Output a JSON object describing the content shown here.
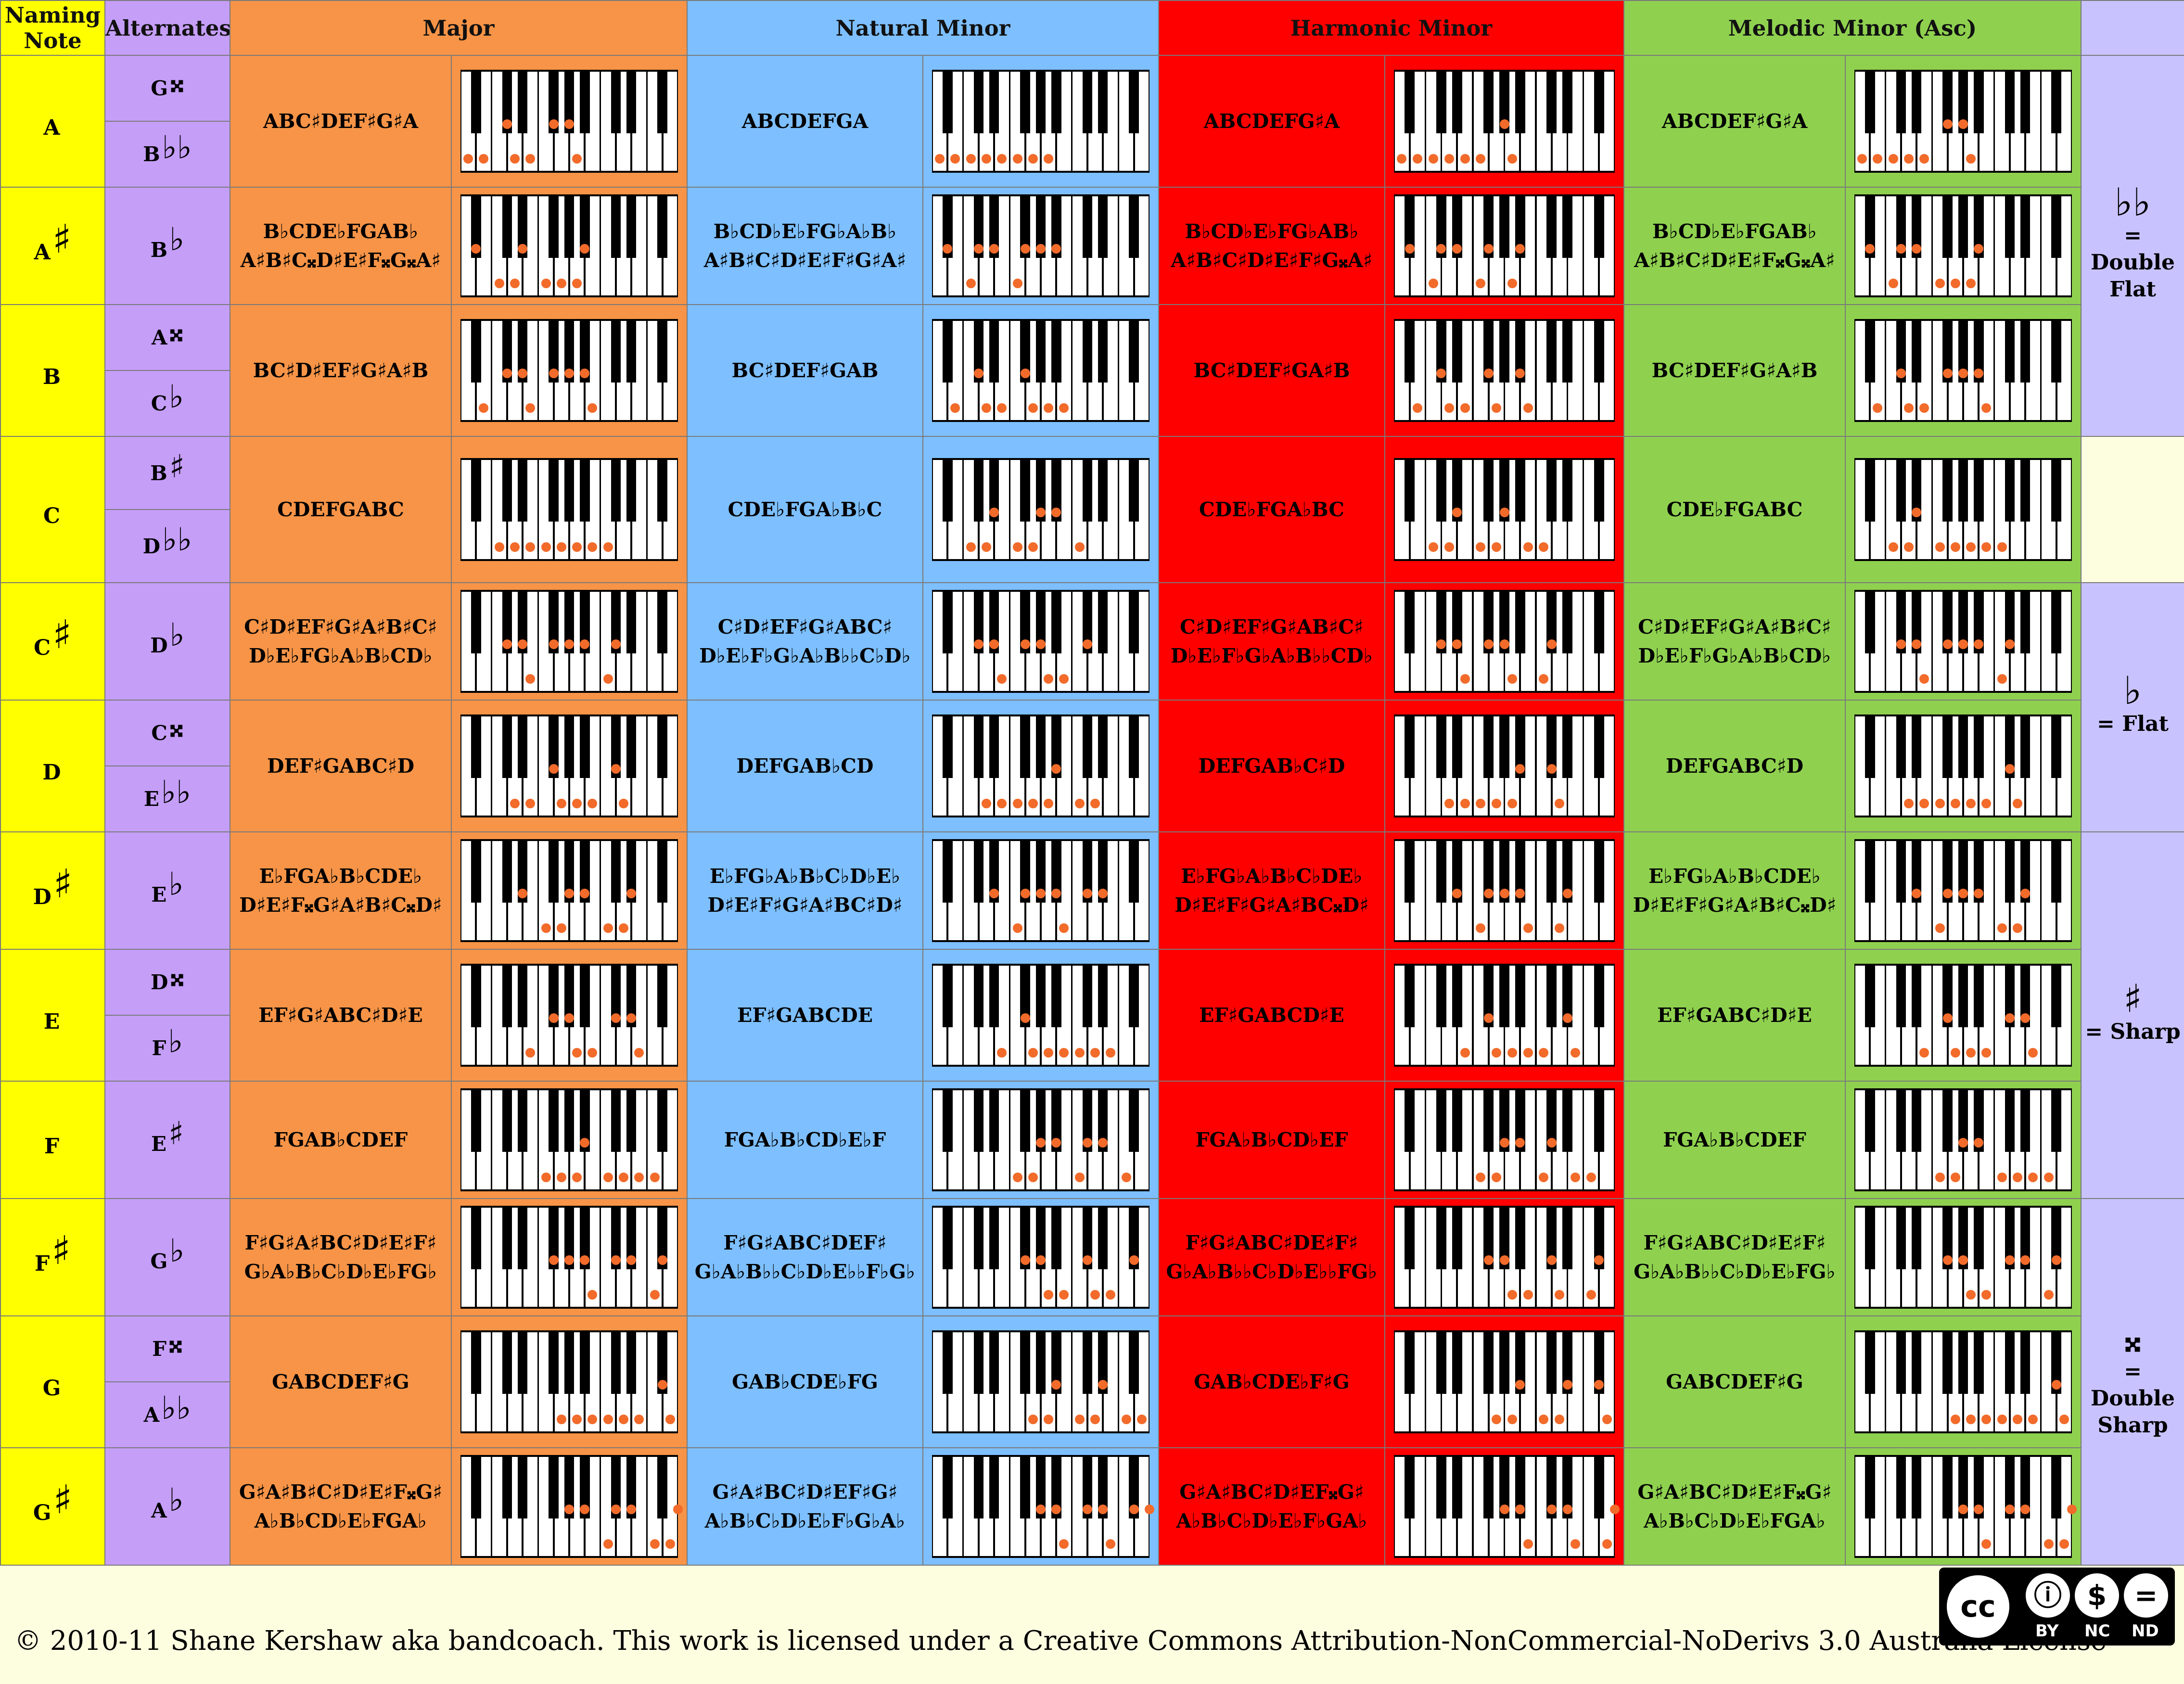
{
  "headers": {
    "naming": "Naming Note",
    "alternates": "Alternates",
    "major": "Major",
    "natural": "Natural Minor",
    "harmonic": "Harmonic Minor",
    "melodic": "Melodic Minor (Asc)"
  },
  "rows": [
    {
      "name": "A",
      "name_acc": "",
      "alts": [
        {
          "l": "G",
          "a": "𝄪"
        },
        {
          "l": "B",
          "a": "♭♭"
        }
      ],
      "major": [
        "ABC♯DEF♯G♯A"
      ],
      "natural": [
        "ABCDEFGA"
      ],
      "harmonic": [
        "ABCDEFG♯A"
      ],
      "melodic": [
        "ABCDEF♯G♯A"
      ]
    },
    {
      "name": "A",
      "name_acc": "♯",
      "alts": [
        {
          "l": "B",
          "a": "♭"
        }
      ],
      "major": [
        "B♭CDE♭FGAB♭",
        "A♯B♯C𝄪D♯E♯F𝄪G𝄪A♯"
      ],
      "natural": [
        "B♭CD♭E♭FG♭A♭B♭",
        "A♯B♯C♯D♯E♯F♯G♯A♯"
      ],
      "harmonic": [
        "B♭CD♭E♭FG♭AB♭",
        "A♯B♯C♯D♯E♯F♯G𝄪A♯"
      ],
      "melodic": [
        "B♭CD♭E♭FGAB♭",
        "A♯B♯C♯D♯E♯F𝄪G𝄪A♯"
      ]
    },
    {
      "name": "B",
      "name_acc": "",
      "alts": [
        {
          "l": "A",
          "a": "𝄪"
        },
        {
          "l": "C",
          "a": "♭"
        }
      ],
      "major": [
        "BC♯D♯EF♯G♯A♯B"
      ],
      "natural": [
        "BC♯DEF♯GAB"
      ],
      "harmonic": [
        "BC♯DEF♯GA♯B"
      ],
      "melodic": [
        "BC♯DEF♯G♯A♯B"
      ]
    },
    {
      "name": "C",
      "name_acc": "",
      "alts": [
        {
          "l": "B",
          "a": "♯"
        },
        {
          "l": "D",
          "a": "♭♭"
        }
      ],
      "major": [
        "CDEFGABC"
      ],
      "natural": [
        "CDE♭FGA♭B♭C"
      ],
      "harmonic": [
        "CDE♭FGA♭BC"
      ],
      "melodic": [
        "CDE♭FGABC"
      ]
    },
    {
      "name": "C",
      "name_acc": "♯",
      "alts": [
        {
          "l": "D",
          "a": "♭"
        }
      ],
      "major": [
        "C♯D♯EF♯G♯A♯B♯C♯",
        "D♭E♭FG♭A♭B♭CD♭"
      ],
      "natural": [
        "C♯D♯EF♯G♯ABC♯",
        "D♭E♭F♭G♭A♭B♭♭C♭D♭"
      ],
      "harmonic": [
        "C♯D♯EF♯G♯AB♯C♯",
        "D♭E♭F♭G♭A♭B♭♭CD♭"
      ],
      "melodic": [
        "C♯D♯EF♯G♯A♯B♯C♯",
        "D♭E♭F♭G♭A♭B♭CD♭"
      ]
    },
    {
      "name": "D",
      "name_acc": "",
      "alts": [
        {
          "l": "C",
          "a": "𝄪"
        },
        {
          "l": "E",
          "a": "♭♭"
        }
      ],
      "major": [
        "DEF♯GABC♯D"
      ],
      "natural": [
        "DEFGAB♭CD"
      ],
      "harmonic": [
        "DEFGAB♭C♯D"
      ],
      "melodic": [
        "DEFGABC♯D"
      ]
    },
    {
      "name": "D",
      "name_acc": "♯",
      "alts": [
        {
          "l": "E",
          "a": "♭"
        }
      ],
      "major": [
        "E♭FGA♭B♭CDE♭",
        "D♯E♯F𝄪G♯A♯B♯C𝄪D♯"
      ],
      "natural": [
        "E♭FG♭A♭B♭C♭D♭E♭",
        "D♯E♯F♯G♯A♯BC♯D♯"
      ],
      "harmonic": [
        "E♭FG♭A♭B♭C♭DE♭",
        "D♯E♯F♯G♯A♯BC𝄪D♯"
      ],
      "melodic": [
        "E♭FG♭A♭B♭CDE♭",
        "D♯E♯F♯G♯A♯B♯C𝄪D♯"
      ]
    },
    {
      "name": "E",
      "name_acc": "",
      "alts": [
        {
          "l": "D",
          "a": "𝄪"
        },
        {
          "l": "F",
          "a": "♭"
        }
      ],
      "major": [
        "EF♯G♯ABC♯D♯E"
      ],
      "natural": [
        "EF♯GABCDE"
      ],
      "harmonic": [
        "EF♯GABCD♯E"
      ],
      "melodic": [
        "EF♯GABC♯D♯E"
      ]
    },
    {
      "name": "F",
      "name_acc": "",
      "alts": [
        {
          "l": "E",
          "a": "♯"
        }
      ],
      "major": [
        "FGAB♭CDEF"
      ],
      "natural": [
        "FGA♭B♭CD♭E♭F"
      ],
      "harmonic": [
        "FGA♭B♭CD♭EF"
      ],
      "melodic": [
        "FGA♭B♭CDEF"
      ]
    },
    {
      "name": "F",
      "name_acc": "♯",
      "alts": [
        {
          "l": "G",
          "a": "♭"
        }
      ],
      "major": [
        "F♯G♯A♯BC♯D♯E♯F♯",
        "G♭A♭B♭C♭D♭E♭FG♭"
      ],
      "natural": [
        "F♯G♯ABC♯DEF♯",
        "G♭A♭B♭♭C♭D♭E♭♭F♭G♭"
      ],
      "harmonic": [
        "F♯G♯ABC♯DE♯F♯",
        "G♭A♭B♭♭C♭D♭E♭♭FG♭"
      ],
      "melodic": [
        "F♯G♯ABC♯D♯E♯F♯",
        "G♭A♭B♭♭C♭D♭E♭FG♭"
      ]
    },
    {
      "name": "G",
      "name_acc": "",
      "alts": [
        {
          "l": "F",
          "a": "𝄪"
        },
        {
          "l": "A",
          "a": "♭♭"
        }
      ],
      "major": [
        "GABCDEF♯G"
      ],
      "natural": [
        "GAB♭CDE♭FG"
      ],
      "harmonic": [
        "GAB♭CDE♭F♯G"
      ],
      "melodic": [
        "GABCDEF♯G"
      ]
    },
    {
      "name": "G",
      "name_acc": "♯",
      "alts": [
        {
          "l": "A",
          "a": "♭"
        }
      ],
      "major": [
        "G♯A♯B♯C♯D♯E♯F𝄪G♯",
        "A♭B♭CD♭E♭FGA♭"
      ],
      "natural": [
        "G♯A♯BC♯D♯EF♯G♯",
        "A♭B♭C♭D♭E♭F♭G♭A♭"
      ],
      "harmonic": [
        "G♯A♯BC♯D♯EF𝄪G♯",
        "A♭B♭C♭D♭E♭F♭GA♭"
      ],
      "melodic": [
        "G♯A♯BC♯D♯E♯F𝄪G♯",
        "A♭B♭C♭D♭E♭FGA♭"
      ]
    }
  ],
  "legend": [
    {
      "symbol": "♭♭",
      "label": "= Double Flat"
    },
    {
      "symbol": "♭",
      "label": "= Flat"
    },
    {
      "symbol": "♯",
      "label": "= Sharp"
    },
    {
      "symbol": "𝄪",
      "label": "= Double Sharp"
    }
  ],
  "colors": {
    "naming": "#ffff00",
    "alternates": "#c59ef8",
    "major": "#f79447",
    "natural": "#7dbfff",
    "harmonic": "#ff0000",
    "melodic": "#8fd14f",
    "legend": "#c8c3ff",
    "dot": "#f26b2a"
  },
  "footer": {
    "text": "© 2010-11 Shane Kershaw aka bandcoach. This work is licensed under a Creative Commons Attribution-NonCommercial-NoDerivs 3.0 Australia License",
    "badge": {
      "cc": "cc",
      "by": "BY",
      "nc": "NC",
      "nd": "ND"
    }
  }
}
